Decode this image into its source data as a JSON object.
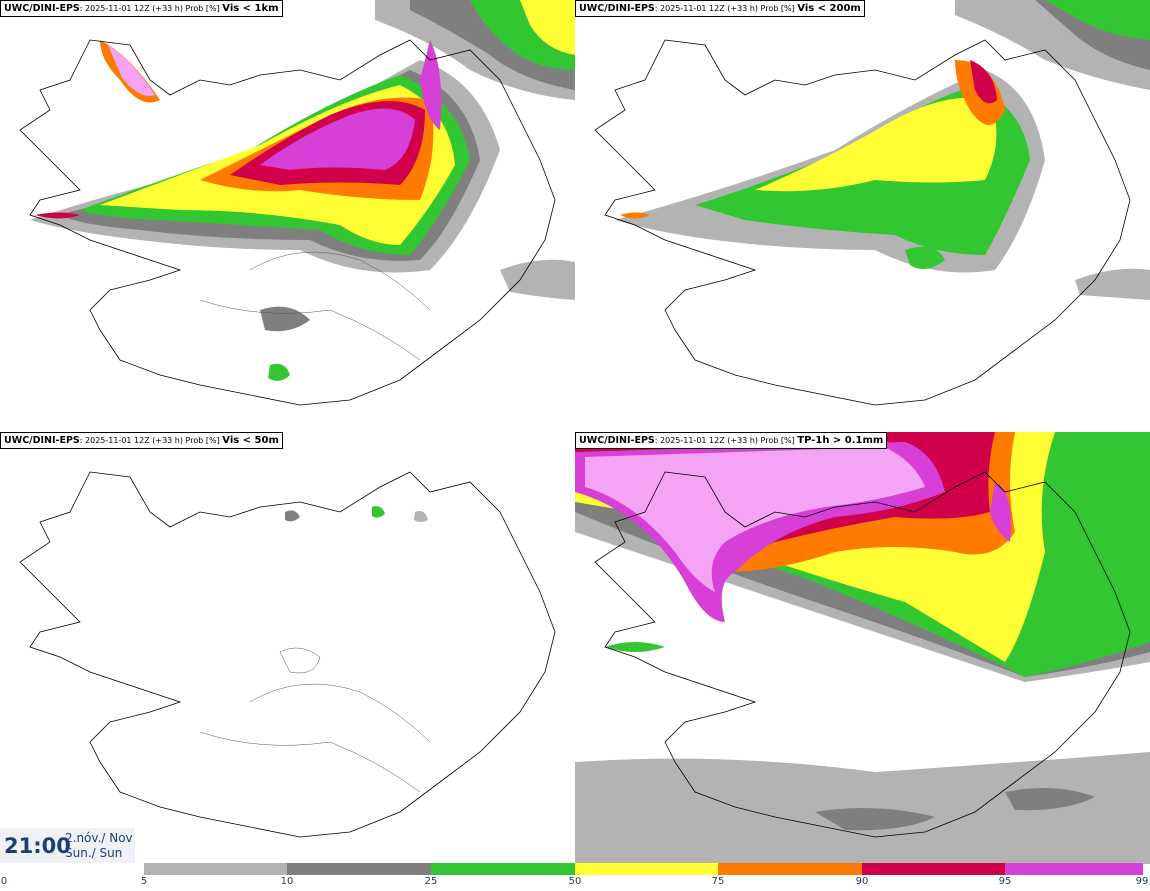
{
  "panels": [
    {
      "model": "UWC/DINI-EPS",
      "run": ": 2025-11-01 12Z (+33 h) Prob [%] ",
      "variable": "Vis < 1km"
    },
    {
      "model": "UWC/DINI-EPS",
      "run": ": 2025-11-01 12Z (+33 h) Prob [%] ",
      "variable": "Vis < 200m"
    },
    {
      "model": "UWC/DINI-EPS",
      "run": ": 2025-11-01 12Z (+33 h) Prob [%] ",
      "variable": "Vis < 50m"
    },
    {
      "model": "UWC/DINI-EPS",
      "run": ": 2025-11-01 12Z (+33 h) Prob [%] ",
      "variable": "TP-1h > 0.1mm"
    }
  ],
  "valid_time": {
    "time": "21:00",
    "date_line1": "2.nóv./ Nov",
    "date_line2": "Sun./ Sun"
  },
  "legend": {
    "ticks": [
      "0",
      "5",
      "10",
      "25",
      "50",
      "75",
      "90",
      "95",
      "99"
    ],
    "colors": [
      "#ffffff",
      "#b3b3b3",
      "#7f7f7f",
      "#33c633",
      "#ffff33",
      "#ff7a00",
      "#d0004a",
      "#d740d7",
      "#f5a3f5"
    ]
  }
}
